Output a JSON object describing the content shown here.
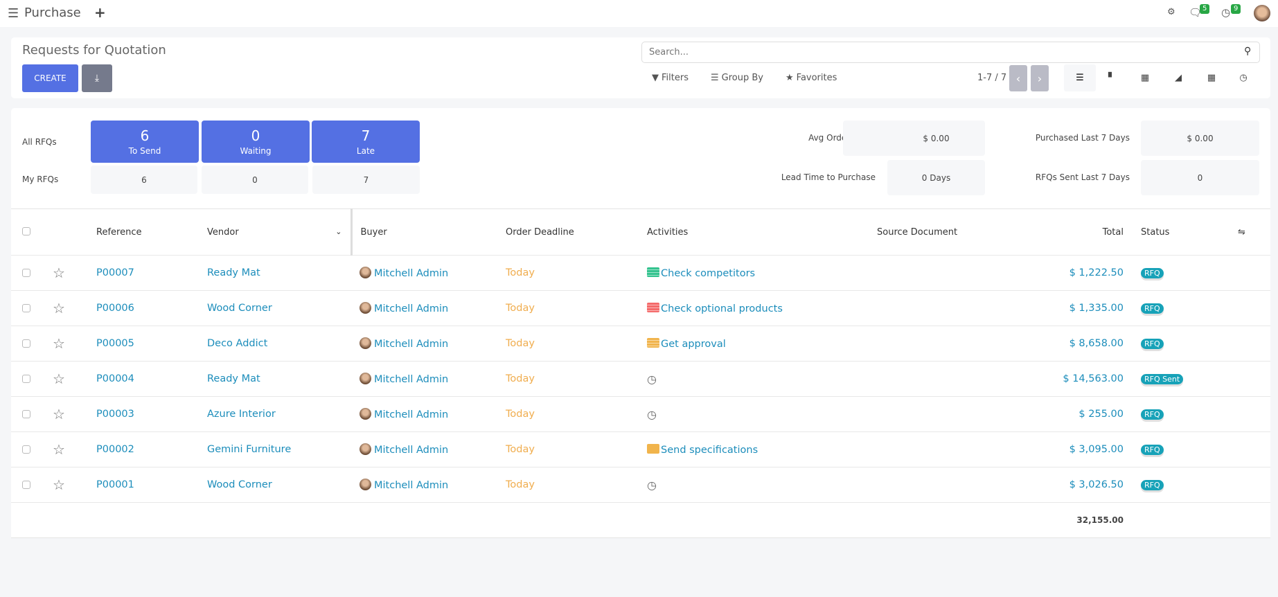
{
  "topbar": {
    "app_title": "Purchase",
    "chat_count": "5",
    "activity_count": "9"
  },
  "control_panel": {
    "title": "Requests for Quotation",
    "create_label": "CREATE",
    "search_placeholder": "Search...",
    "filters_label": "Filters",
    "group_by_label": "Group By",
    "favorites_label": "Favorites",
    "pager": "1-7 / 7",
    "views": [
      "list",
      "kanban",
      "pivot",
      "graph",
      "calendar",
      "activity"
    ],
    "active_view": "list"
  },
  "dashboard": {
    "all_label": "All RFQs",
    "my_label": "My RFQs",
    "tiles": [
      {
        "value": "6",
        "label": "To Send",
        "mine": "6"
      },
      {
        "value": "0",
        "label": "Waiting",
        "mine": "0"
      },
      {
        "value": "7",
        "label": "Late",
        "mine": "7"
      }
    ],
    "kpis": [
      {
        "label": "Avg Order Value",
        "value": "$ 0.00"
      },
      {
        "label": "Purchased Last 7 Days",
        "value": "$ 0.00"
      },
      {
        "label": "Lead Time to Purchase",
        "value": "0 Days"
      },
      {
        "label": "RFQs Sent Last 7 Days",
        "value": "0"
      }
    ],
    "accent": "#5470e3"
  },
  "table": {
    "headers": {
      "reference": "Reference",
      "vendor": "Vendor",
      "buyer": "Buyer",
      "deadline": "Order Deadline",
      "activities": "Activities",
      "source": "Source Document",
      "total": "Total",
      "status": "Status"
    },
    "rows": [
      {
        "ref": "P00007",
        "vendor": "Ready Mat",
        "buyer": "Mitchell Admin",
        "deadline": "Today",
        "activity": "Check competitors",
        "activity_icon": "todo-green",
        "total": "$ 1,222.50",
        "status": "RFQ"
      },
      {
        "ref": "P00006",
        "vendor": "Wood Corner",
        "buyer": "Mitchell Admin",
        "deadline": "Today",
        "activity": "Check optional products",
        "activity_icon": "todo-red",
        "total": "$ 1,335.00",
        "status": "RFQ"
      },
      {
        "ref": "P00005",
        "vendor": "Deco Addict",
        "buyer": "Mitchell Admin",
        "deadline": "Today",
        "activity": "Get approval",
        "activity_icon": "todo-orange",
        "total": "$ 8,658.00",
        "status": "RFQ"
      },
      {
        "ref": "P00004",
        "vendor": "Ready Mat",
        "buyer": "Mitchell Admin",
        "deadline": "Today",
        "activity": "",
        "activity_icon": "clock",
        "total": "$ 14,563.00",
        "status": "RFQ Sent"
      },
      {
        "ref": "P00003",
        "vendor": "Azure Interior",
        "buyer": "Mitchell Admin",
        "deadline": "Today",
        "activity": "",
        "activity_icon": "clock",
        "total": "$ 255.00",
        "status": "RFQ"
      },
      {
        "ref": "P00002",
        "vendor": "Gemini Furniture",
        "buyer": "Mitchell Admin",
        "deadline": "Today",
        "activity": "Send specifications",
        "activity_icon": "envelope-orange",
        "total": "$ 3,095.00",
        "status": "RFQ"
      },
      {
        "ref": "P00001",
        "vendor": "Wood Corner",
        "buyer": "Mitchell Admin",
        "deadline": "Today",
        "activity": "",
        "activity_icon": "clock",
        "total": "$ 3,026.50",
        "status": "RFQ"
      }
    ],
    "grand_total": "32,155.00"
  },
  "colors": {
    "link": "#1c8dbb",
    "today": "#f0ad4e",
    "status": "#17a2b8",
    "green": "#34c38f",
    "red": "#f46a6a",
    "orange": "#f1b44c"
  }
}
